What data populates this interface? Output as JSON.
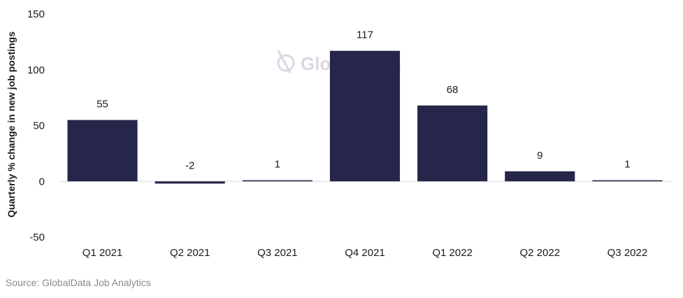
{
  "chart_data": {
    "type": "bar",
    "categories": [
      "Q1 2021",
      "Q2 2021",
      "Q3 2021",
      "Q4 2021",
      "Q1 2022",
      "Q2 2022",
      "Q3 2022"
    ],
    "values": [
      55,
      -2,
      1,
      117,
      68,
      9,
      1
    ],
    "data_labels": [
      "55",
      "-2",
      "1",
      "117",
      "68",
      "9",
      "1"
    ],
    "ylabel": "Quarterly % change in new job postings",
    "xlabel": "",
    "ylim": [
      -50,
      150
    ],
    "yticks": [
      -50,
      0,
      50,
      100,
      150
    ],
    "grid": false,
    "bar_color": "#26264a"
  },
  "watermark": {
    "text": "GlobalData."
  },
  "source": "Source: GlobalData Job Analytics"
}
